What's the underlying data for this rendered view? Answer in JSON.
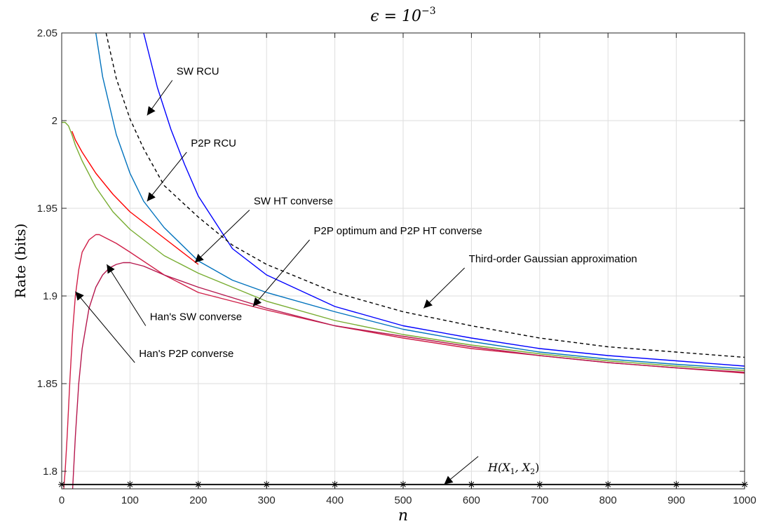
{
  "chart_data": {
    "type": "line",
    "title_epsilon": "ϵ = 10",
    "title_exponent": "−3",
    "xlabel": "n",
    "ylabel": "Rate (bits)",
    "xlim": [
      0,
      1000
    ],
    "ylim": [
      1.79,
      2.05
    ],
    "x_ticks": [
      0,
      100,
      200,
      300,
      400,
      500,
      600,
      700,
      800,
      900,
      1000
    ],
    "y_ticks": [
      1.8,
      1.85,
      1.9,
      1.95,
      2,
      2.05
    ],
    "x_tick_labels": [
      "0",
      "100",
      "200",
      "300",
      "400",
      "500",
      "600",
      "700",
      "800",
      "900",
      "1000"
    ],
    "y_tick_labels": [
      "1.8",
      "1.85",
      "1.9",
      "1.95",
      "2",
      "2.05"
    ],
    "grid": true,
    "series": [
      {
        "color": "#0000ff",
        "x": [
          120,
          140,
          160,
          180,
          200,
          250,
          300,
          400,
          500,
          600,
          700,
          800,
          900,
          1000
        ],
        "y": [
          2.05,
          2.019,
          1.995,
          1.975,
          1.957,
          1.927,
          1.912,
          1.894,
          1.883,
          1.876,
          1.87,
          1.866,
          1.863,
          1.86
        ]
      },
      {
        "color": "#0072bd",
        "x": [
          50,
          60,
          80,
          100,
          120,
          150,
          200,
          250,
          300,
          400,
          500,
          600,
          700,
          800,
          900,
          1000
        ],
        "y": [
          2.05,
          2.025,
          1.992,
          1.97,
          1.954,
          1.939,
          1.92,
          1.909,
          1.902,
          1.891,
          1.881,
          1.874,
          1.868,
          1.864,
          1.861,
          1.8585
        ]
      },
      {
        "color": "#000000",
        "dashed": true,
        "x": [
          65,
          80,
          100,
          120,
          150,
          200,
          250,
          300,
          400,
          500,
          600,
          700,
          800,
          900,
          1000
        ],
        "y": [
          2.05,
          2.024,
          2.001,
          1.984,
          1.963,
          1.945,
          1.929,
          1.918,
          1.902,
          1.891,
          1.883,
          1.876,
          1.871,
          1.868,
          1.865
        ]
      },
      {
        "color": "#ff0000",
        "x": [
          15,
          20,
          30,
          50,
          75,
          100,
          150,
          200
        ],
        "y": [
          1.994,
          1.989,
          1.982,
          1.97,
          1.958,
          1.948,
          1.933,
          1.918
        ]
      },
      {
        "color": "#77ac30",
        "x": [
          0,
          5,
          10,
          15,
          20,
          30,
          50,
          75,
          100,
          150,
          200,
          300,
          400,
          500,
          600,
          700,
          800,
          900,
          1000
        ],
        "y": [
          1.999,
          1.999,
          1.997,
          1.992,
          1.986,
          1.977,
          1.962,
          1.948,
          1.938,
          1.923,
          1.913,
          1.897,
          1.886,
          1.878,
          1.872,
          1.867,
          1.863,
          1.86,
          1.8575
        ]
      },
      {
        "color": "#d01f48",
        "x": [
          3,
          5,
          8,
          12,
          16,
          20,
          25,
          30,
          40,
          50,
          55,
          60,
          70,
          80,
          100,
          150,
          200,
          300,
          400,
          500,
          600,
          700,
          800,
          900,
          1000
        ],
        "y": [
          1.79,
          1.8,
          1.82,
          1.852,
          1.88,
          1.9,
          1.915,
          1.925,
          1.932,
          1.935,
          1.935,
          1.934,
          1.932,
          1.93,
          1.925,
          1.912,
          1.902,
          1.892,
          1.883,
          1.876,
          1.87,
          1.866,
          1.862,
          1.859,
          1.856
        ]
      },
      {
        "color": "#b5184e",
        "x": [
          16,
          20,
          25,
          30,
          40,
          50,
          60,
          70,
          80,
          90,
          100,
          120,
          150,
          200,
          300,
          400,
          500,
          600,
          700,
          800,
          900,
          1000
        ],
        "y": [
          1.79,
          1.82,
          1.85,
          1.87,
          1.893,
          1.905,
          1.912,
          1.916,
          1.918,
          1.919,
          1.919,
          1.917,
          1.912,
          1.905,
          1.893,
          1.883,
          1.877,
          1.871,
          1.866,
          1.862,
          1.859,
          1.8565
        ]
      },
      {
        "color": "#000000",
        "markers": true,
        "x": [
          0,
          100,
          200,
          300,
          400,
          500,
          600,
          700,
          800,
          900,
          1000
        ],
        "y": [
          1.7925,
          1.7925,
          1.7925,
          1.7925,
          1.7925,
          1.7925,
          1.7925,
          1.7925,
          1.7925,
          1.7925,
          1.7925
        ]
      }
    ],
    "annotations": [
      {
        "text": "SW RCU",
        "tip": [
          125,
          2.003
        ],
        "tail": [
          162,
          2.023
        ]
      },
      {
        "text": "P2P RCU",
        "tip": [
          125,
          1.954
        ],
        "tail": [
          183,
          1.982
        ]
      },
      {
        "text": "SW HT converse",
        "tip": [
          195,
          1.919
        ],
        "tail": [
          275,
          1.949
        ]
      },
      {
        "text": "P2P optimum and P2P HT converse",
        "tip": [
          280,
          1.894
        ],
        "tail": [
          363,
          1.932
        ]
      },
      {
        "text": "Third-order Gaussian approximation",
        "tip": [
          530,
          1.893
        ],
        "tail": [
          590,
          1.916
        ]
      },
      {
        "text": "Han's SW converse",
        "tip": [
          66,
          1.918
        ],
        "tail": [
          123,
          1.883
        ]
      },
      {
        "text": "Han's P2P converse",
        "tip": [
          20,
          1.9025
        ],
        "tail": [
          107,
          1.862
        ]
      }
    ],
    "h_label_main": "H(X",
    "h_label_sub1": "1",
    "h_label_sep": ", X",
    "h_label_sub2": "2",
    "h_label_close": ")",
    "h_arrow": {
      "tip": [
        560,
        1.7925
      ],
      "tail": [
        610,
        1.8085
      ]
    }
  }
}
